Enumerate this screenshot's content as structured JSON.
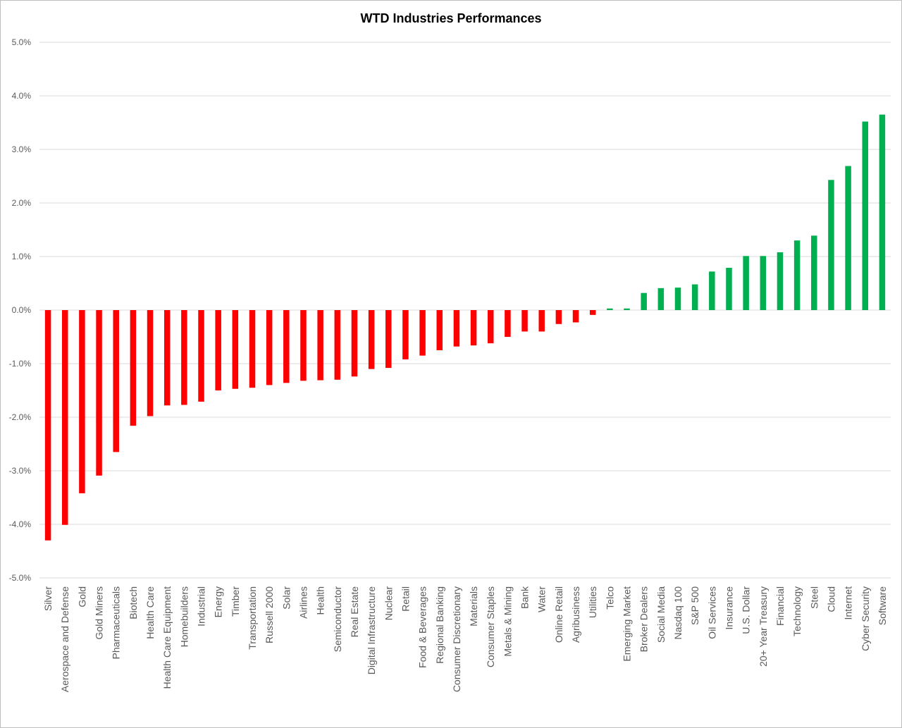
{
  "chart_data": {
    "type": "bar",
    "title": "WTD Industries Performances",
    "xlabel": "",
    "ylabel": "",
    "ylim": [
      -5.0,
      5.0
    ],
    "yticks": [
      "5.0%",
      "4.0%",
      "3.0%",
      "2.0%",
      "1.0%",
      "0.0%",
      "-1.0%",
      "-2.0%",
      "-3.0%",
      "-4.0%",
      "-5.0%"
    ],
    "ytick_values": [
      5,
      4,
      3,
      2,
      1,
      0,
      -1,
      -2,
      -3,
      -4,
      -5
    ],
    "grid": true,
    "legend": "none",
    "colors": {
      "positive": "#00b050",
      "negative": "#ff0000",
      "grid": "#d9d9d9",
      "axis_text": "#595959"
    },
    "categories": [
      "Silver",
      "Aerospace and Defense",
      "Gold",
      "Gold Miners",
      "Pharmaceuticals",
      "Biotech",
      "Health Care",
      "Health Care Equipment",
      "Homebuilders",
      "Industrial",
      "Energy",
      "Timber",
      "Transportation",
      "Russell 2000",
      "Solar",
      "Airlines",
      "Health",
      "Semiconductor",
      "Real Estate",
      "Digital Infrastructure",
      "Nuclear",
      "Retail",
      "Food & Beverages",
      "Regional Banking",
      "Consumer Discretionary",
      "Materials",
      "Consumer Staples",
      "Metals & Mining",
      "Bank",
      "Water",
      "Online Retail",
      "Agribusiness",
      "Utilities",
      "Telco",
      "Emerging Market",
      "Broker Dealers",
      "Social Media",
      "Nasdaq 100",
      "S&P 500",
      "Oil Services",
      "Insurance",
      "U.S. Dollar",
      "20+ Year Treasury",
      "Financial",
      "Technology",
      "Steel",
      "Cloud",
      "Internet",
      "Cyber Security",
      "Software"
    ],
    "values": [
      -4.3,
      -4.01,
      -3.42,
      -3.09,
      -2.65,
      -2.16,
      -1.98,
      -1.78,
      -1.77,
      -1.71,
      -1.5,
      -1.47,
      -1.45,
      -1.4,
      -1.36,
      -1.32,
      -1.31,
      -1.3,
      -1.24,
      -1.1,
      -1.08,
      -0.92,
      -0.85,
      -0.75,
      -0.68,
      -0.66,
      -0.62,
      -0.5,
      -0.4,
      -0.4,
      -0.26,
      -0.23,
      -0.09,
      0.03,
      0.03,
      0.32,
      0.41,
      0.42,
      0.48,
      0.72,
      0.79,
      1.01,
      1.01,
      1.08,
      1.3,
      1.39,
      2.43,
      2.69,
      3.52,
      3.65
    ]
  }
}
